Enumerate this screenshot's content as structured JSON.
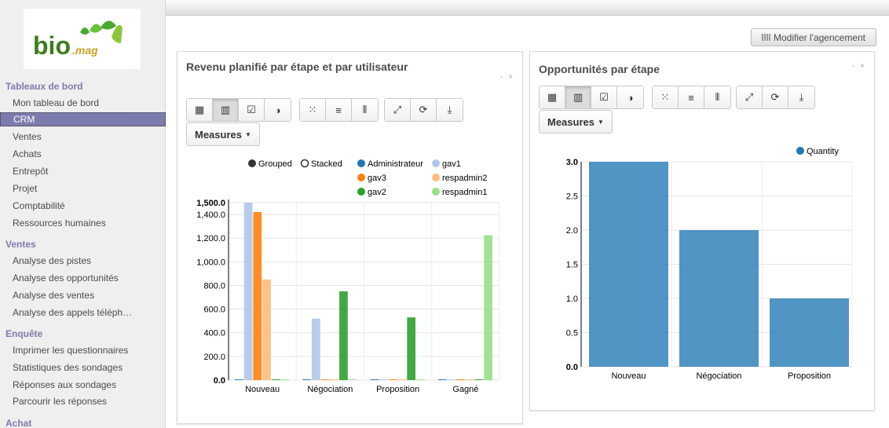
{
  "sidebar": {
    "logo_text": "bio .mag",
    "sections": [
      {
        "title": "Tableaux de bord",
        "items": [
          "Mon tableau de bord",
          "CRM",
          "Ventes",
          "Achats",
          "Entrepôt",
          "Projet",
          "Comptabilité",
          "Ressources humaines"
        ]
      },
      {
        "title": "Ventes",
        "items": [
          "Analyse des pistes",
          "Analyse des opportunités",
          "Analyse des ventes",
          "Analyse des appels téléph…"
        ]
      },
      {
        "title": "Enquête",
        "items": [
          "Imprimer les questionnaires",
          "Statistiques des sondages",
          "Réponses aux sondages",
          "Parcourir les réponses"
        ]
      },
      {
        "title": "Achat",
        "items": []
      }
    ],
    "active_item": "CRM"
  },
  "toolbar": {
    "layout_button": "Modifier l'agencement"
  },
  "panel1": {
    "title": "Revenu planifié par étape et par utilisateur",
    "controls": "- ×",
    "measures_label": "Measures",
    "mode_grouped": "Grouped",
    "mode_stacked": "Stacked"
  },
  "panel2": {
    "title": "Opportunités par étape",
    "controls": "- ×",
    "measures_label": "Measures"
  },
  "chart_data": [
    {
      "type": "bar",
      "categories": [
        "Nouveau",
        "Négociation",
        "Proposition",
        "Gagné"
      ],
      "ylim": [
        0,
        1500
      ],
      "yticks": [
        "0.0",
        "200.0",
        "400.0",
        "600.0",
        "800.0",
        "1,000.0",
        "1,200.0",
        "1,400.0",
        "1,500.0"
      ],
      "yvals": [
        0,
        200,
        400,
        600,
        800,
        1000,
        1200,
        1400,
        1500
      ],
      "series": [
        {
          "name": "Administrateur",
          "color": "#1f77b4",
          "values": [
            0,
            0,
            0,
            0
          ]
        },
        {
          "name": "gav1",
          "color": "#aec7e8",
          "values": [
            1500,
            520,
            0,
            0
          ]
        },
        {
          "name": "gav3",
          "color": "#ff7f0e",
          "values": [
            1420,
            0,
            0,
            0
          ]
        },
        {
          "name": "respadmin2",
          "color": "#ffbb78",
          "values": [
            850,
            0,
            0,
            0
          ]
        },
        {
          "name": "gav2",
          "color": "#2ca02c",
          "values": [
            0,
            750,
            530,
            0
          ]
        },
        {
          "name": "respadmin1",
          "color": "#98df8a",
          "values": [
            0,
            0,
            0,
            1225
          ]
        }
      ]
    },
    {
      "type": "bar",
      "categories": [
        "Nouveau",
        "Négociation",
        "Proposition"
      ],
      "ylim": [
        0,
        3
      ],
      "yticks": [
        "0.0",
        "0.5",
        "1.0",
        "1.5",
        "2.0",
        "2.5",
        "3.0"
      ],
      "yvals": [
        0,
        0.5,
        1,
        1.5,
        2,
        2.5,
        3
      ],
      "series": [
        {
          "name": "Quantity",
          "color": "#1f77b4",
          "values": [
            3,
            2,
            1
          ]
        }
      ]
    }
  ]
}
